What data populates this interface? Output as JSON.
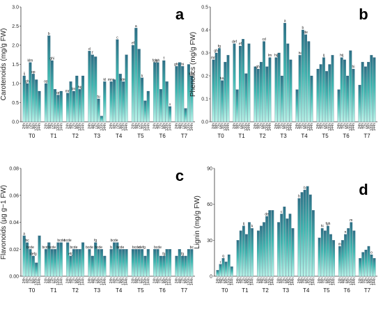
{
  "times": [
    "24h",
    "48h",
    "72h",
    "96h",
    "120h",
    "144h"
  ],
  "groups": [
    "T0",
    "T1",
    "T2",
    "T3",
    "T4",
    "T5",
    "T6",
    "T7"
  ],
  "colors": {
    "bar_top": "#2e6f86",
    "bar_mid": "#3fb6b0",
    "bar_bottom": "#b9f3e8",
    "axis": "#333333"
  },
  "chart_data": [
    {
      "type": "bar",
      "panel": "a",
      "ylabel": "Carotenoids (mg/g FW)",
      "ylim": [
        0,
        3.0
      ],
      "yticks": [
        "0.0",
        "0.5",
        "1.0",
        "1.5",
        "2.0",
        "2.5",
        "3.0"
      ],
      "categories": [
        "T0",
        "T1",
        "T2",
        "T3",
        "T4",
        "T5",
        "T6",
        "T7"
      ],
      "series_names": [
        "24h",
        "48h",
        "72h",
        "96h",
        "120h",
        "144h"
      ],
      "values": [
        [
          1.2,
          1.0,
          1.55,
          1.25,
          1.1,
          0.8
        ],
        [
          1.0,
          2.25,
          1.6,
          0.85,
          0.7,
          0.8
        ],
        [
          0.75,
          1.05,
          0.8,
          1.2,
          0.85,
          1.2
        ],
        [
          1.85,
          1.75,
          1.7,
          0.6,
          0.15,
          1.05
        ],
        [
          1.05,
          1.1,
          2.15,
          1.25,
          1.05,
          1.75
        ],
        [
          2.0,
          2.45,
          1.9,
          1.15,
          0.55,
          0.8
        ],
        [
          1.55,
          1.55,
          0.85,
          1.6,
          1.05,
          0.4
        ],
        [
          1.45,
          1.55,
          1.45,
          0.35,
          1.5,
          1.2
        ]
      ],
      "labels": [
        [
          "ij",
          "gh",
          "klm",
          "op",
          "",
          ""
        ],
        [
          "op",
          "b",
          "ghi",
          "",
          "qr",
          ""
        ],
        [
          "mn",
          "",
          "lm",
          "",
          "hij",
          ""
        ],
        [
          "d",
          "f",
          "",
          "tu",
          "",
          "kl"
        ],
        [
          "mno",
          "",
          "c",
          "",
          "klm",
          ""
        ],
        [
          "ef",
          "a",
          "",
          "k",
          "",
          ""
        ],
        [
          "fgh",
          "gh",
          "",
          "f",
          "",
          "x"
        ],
        [
          "ghi",
          "",
          "hi",
          "",
          "",
          "klm"
        ]
      ]
    },
    {
      "type": "bar",
      "panel": "b",
      "ylabel": "Phenolics (mg/g FW)",
      "ylim": [
        0,
        0.5
      ],
      "yticks": [
        "0.0",
        "0.1",
        "0.2",
        "0.3",
        "0.4",
        "0.5"
      ],
      "categories": [
        "T0",
        "T1",
        "T2",
        "T3",
        "T4",
        "T5",
        "T6",
        "T7"
      ],
      "series_names": [
        "24h",
        "48h",
        "72h",
        "96h",
        "120h",
        "144h"
      ],
      "values": [
        [
          0.27,
          0.3,
          0.32,
          0.18,
          0.26,
          0.29
        ],
        [
          0.34,
          0.14,
          0.33,
          0.36,
          0.21,
          0.34
        ],
        [
          0.24,
          0.23,
          0.26,
          0.35,
          0.24,
          0.28
        ],
        [
          0.28,
          0.3,
          0.2,
          0.43,
          0.34,
          0.27
        ],
        [
          0.14,
          0.29,
          0.4,
          0.38,
          0.35,
          0.2
        ],
        [
          0.23,
          0.25,
          0.28,
          0.22,
          0.25,
          0.29
        ],
        [
          0.14,
          0.28,
          0.27,
          0.2,
          0.31,
          0.23
        ],
        [
          0.16,
          0.26,
          0.24,
          0.26,
          0.29,
          0.28
        ]
      ],
      "labels": [
        [
          "mn",
          "ghi",
          "fg",
          "tuv",
          "",
          ""
        ],
        [
          "def",
          "",
          "ef",
          "",
          "",
          ""
        ],
        [
          "",
          "ghi",
          "",
          "cd",
          "",
          "lm"
        ],
        [
          "hij",
          "",
          "",
          "a",
          "",
          ""
        ],
        [
          "",
          "hi",
          "b",
          "de",
          "",
          ""
        ],
        [
          "",
          "",
          "ij",
          "",
          "",
          ""
        ],
        [
          "",
          "hij",
          "",
          "",
          "",
          "hi"
        ],
        [
          "",
          "",
          "",
          "",
          "",
          ""
        ]
      ]
    },
    {
      "type": "bar",
      "panel": "c",
      "ylabel": "Flavonoids (µg g−1 FW)",
      "ylim": [
        0,
        0.08
      ],
      "yticks": [
        "0.00",
        "0.02",
        "0.04",
        "0.06",
        "0.08"
      ],
      "categories": [
        "T0",
        "T1",
        "T2",
        "T3",
        "T4",
        "T5",
        "T6",
        "T7"
      ],
      "series_names": [
        "24h",
        "48h",
        "72h",
        "96h",
        "120h",
        "144h"
      ],
      "values": [
        [
          0.03,
          0.025,
          0.02,
          0.015,
          0.01,
          0.03
        ],
        [
          0.02,
          0.025,
          0.02,
          0.02,
          0.025,
          0.025
        ],
        [
          0.025,
          0.015,
          0.02,
          0.02,
          0.02,
          0.025
        ],
        [
          0.02,
          0.015,
          0.025,
          0.02,
          0.02,
          0.015
        ],
        [
          0.02,
          0.025,
          0.025,
          0.02,
          0.02,
          0.02
        ],
        [
          0.02,
          0.02,
          0.02,
          0.02,
          0.015,
          0.02
        ],
        [
          0.02,
          0.02,
          0.015,
          0.015,
          0.02,
          0.02
        ],
        [
          0.015,
          0.02,
          0.015,
          0.015,
          0.02,
          0.02
        ]
      ],
      "labels": [
        [
          "a",
          "bc",
          "bcde",
          "defg",
          "",
          ""
        ],
        [
          "bcde",
          "",
          "bcde",
          "",
          "",
          "bcde"
        ],
        [
          "bcde",
          "efg",
          "bcde",
          "",
          "",
          ""
        ],
        [
          "bcde",
          "",
          "fg",
          "bcde",
          "",
          ""
        ],
        [
          "b",
          "bcde",
          "",
          "bcde",
          "",
          ""
        ],
        [
          "",
          "bcde",
          "",
          "defg",
          "",
          ""
        ],
        [
          "",
          "bcde",
          "",
          "fg",
          "",
          ""
        ],
        [
          "",
          "",
          "fg",
          "",
          "",
          "bc"
        ]
      ]
    },
    {
      "type": "bar",
      "panel": "d",
      "ylabel": "Lignin (mg/g FW)",
      "ylim": [
        0,
        90
      ],
      "yticks": [
        "0",
        "30",
        "60",
        "90"
      ],
      "categories": [
        "T0",
        "T1",
        "T2",
        "T3",
        "T4",
        "T5",
        "T6",
        "T7"
      ],
      "series_names": [
        "24h",
        "48h",
        "72h",
        "96h",
        "120h",
        "144h"
      ],
      "values": [
        [
          5,
          10,
          15,
          12,
          18,
          8
        ],
        [
          30,
          38,
          42,
          35,
          45,
          40
        ],
        [
          38,
          42,
          45,
          50,
          55,
          55
        ],
        [
          45,
          52,
          58,
          48,
          52,
          40
        ],
        [
          65,
          70,
          72,
          75,
          68,
          55
        ],
        [
          32,
          40,
          38,
          42,
          35,
          30
        ],
        [
          25,
          30,
          35,
          40,
          45,
          38
        ],
        [
          15,
          20,
          22,
          25,
          18,
          15
        ]
      ],
      "labels": [
        [
          "",
          "r",
          "q",
          "",
          "",
          ""
        ],
        [
          "",
          "",
          "ij",
          "",
          "",
          "k"
        ],
        [
          "",
          "",
          "",
          "de",
          "",
          ""
        ],
        [
          "",
          "c",
          "",
          "",
          "",
          ""
        ],
        [
          "b",
          "",
          "b",
          "",
          "",
          ""
        ],
        [
          "",
          "hi",
          "",
          "fgh",
          "",
          ""
        ],
        [
          "m",
          "",
          "n",
          "",
          "m",
          ""
        ],
        [
          "",
          "",
          "",
          "",
          "o",
          ""
        ]
      ]
    }
  ]
}
